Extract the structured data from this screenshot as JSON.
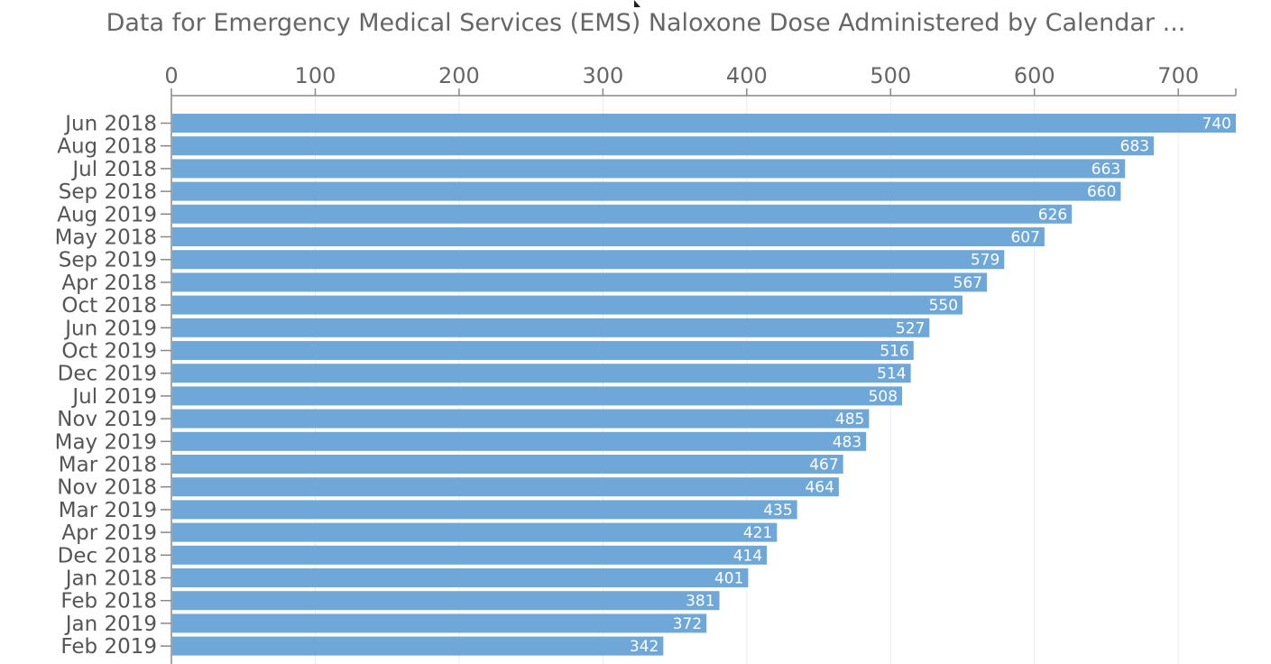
{
  "chart_data": {
    "type": "bar",
    "orientation": "horizontal",
    "title": "Data for Emergency Medical Services (EMS) Naloxone Dose Administered by Calendar ...",
    "xlabel": "",
    "ylabel": "",
    "xlim": [
      0,
      740
    ],
    "x_ticks": [
      0,
      100,
      200,
      300,
      400,
      500,
      600,
      700
    ],
    "x_axis_position": "top",
    "grid": true,
    "bar_color": "#6fa8d8",
    "categories": [
      "Jun 2018",
      "Aug 2018",
      "Jul 2018",
      "Sep 2018",
      "Aug 2019",
      "May 2018",
      "Sep 2019",
      "Apr 2018",
      "Oct 2018",
      "Jun 2019",
      "Oct 2019",
      "Dec 2019",
      "Jul 2019",
      "Nov 2019",
      "May 2019",
      "Mar 2018",
      "Nov 2018",
      "Mar 2019",
      "Apr 2019",
      "Dec 2018",
      "Jan 2018",
      "Feb 2018",
      "Jan 2019",
      "Feb 2019"
    ],
    "values": [
      740,
      683,
      663,
      660,
      626,
      607,
      579,
      567,
      550,
      527,
      516,
      514,
      508,
      485,
      483,
      467,
      464,
      435,
      421,
      414,
      401,
      381,
      372,
      342
    ]
  }
}
